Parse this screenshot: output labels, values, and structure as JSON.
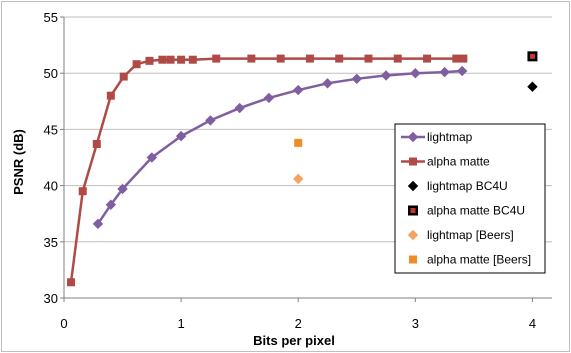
{
  "chart_data": {
    "type": "line",
    "xlabel": "Bits per pixel",
    "ylabel": "PSNR (dB)",
    "xlim": [
      0,
      4.5
    ],
    "ylim": [
      30,
      55
    ],
    "xticks": [
      0,
      1,
      2,
      3,
      4
    ],
    "yticks": [
      30,
      35,
      40,
      45,
      50,
      55
    ],
    "grid": "horizontal",
    "legend_position": "right",
    "series": [
      {
        "name": "lightmap",
        "kind": "line",
        "color": "#7f5f9f",
        "marker": "diamond",
        "x": [
          0.29,
          0.4,
          0.5,
          0.75,
          1.0,
          1.25,
          1.5,
          1.75,
          2.0,
          2.25,
          2.5,
          2.75,
          3.0,
          3.25,
          3.4
        ],
        "y": [
          36.6,
          38.3,
          39.7,
          42.5,
          44.4,
          45.8,
          46.9,
          47.8,
          48.5,
          49.1,
          49.5,
          49.8,
          50.0,
          50.1,
          50.2
        ]
      },
      {
        "name": "alpha matte",
        "kind": "line",
        "color": "#b04a46",
        "marker": "square",
        "x": [
          0.06,
          0.16,
          0.28,
          0.4,
          0.51,
          0.62,
          0.73,
          0.84,
          0.91,
          1.0,
          1.1,
          1.3,
          1.6,
          1.85,
          2.1,
          2.35,
          2.6,
          2.85,
          3.1,
          3.35,
          3.41
        ],
        "y": [
          31.4,
          39.5,
          43.7,
          48.0,
          49.7,
          50.8,
          51.1,
          51.2,
          51.2,
          51.2,
          51.2,
          51.3,
          51.3,
          51.3,
          51.3,
          51.3,
          51.3,
          51.3,
          51.3,
          51.3,
          51.3
        ]
      },
      {
        "name": "lightmap BC4U",
        "kind": "point",
        "color": "#000000",
        "marker": "diamond",
        "x": [
          4.0
        ],
        "y": [
          48.8
        ]
      },
      {
        "name": "alpha matte BC4U",
        "kind": "point",
        "color": "#c0392b",
        "marker": "square-outlined",
        "x": [
          4.0
        ],
        "y": [
          51.5
        ]
      },
      {
        "name": "lightmap [Beers]",
        "kind": "point",
        "color": "#f4a460",
        "marker": "diamond",
        "x": [
          2.0
        ],
        "y": [
          40.6
        ]
      },
      {
        "name": "alpha matte [Beers]",
        "kind": "point",
        "color": "#f08c28",
        "marker": "square",
        "x": [
          2.0
        ],
        "y": [
          43.8
        ]
      }
    ]
  }
}
